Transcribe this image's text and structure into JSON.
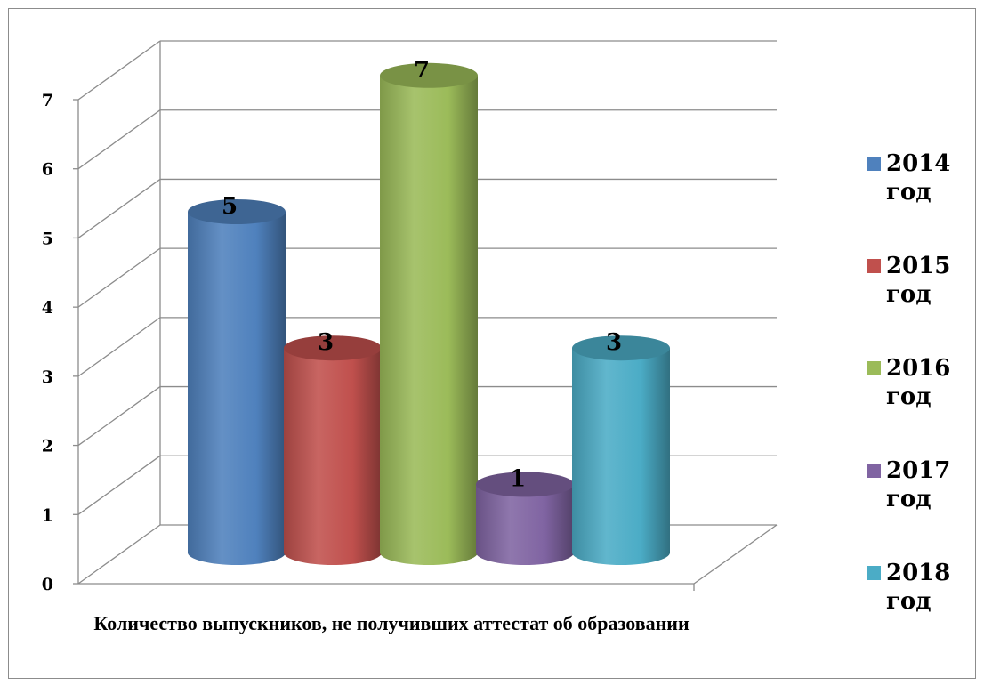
{
  "chart_data": {
    "type": "bar",
    "subtype": "3d-cylinder",
    "categories": [
      "2014 год",
      "2015 год",
      "2016 год",
      "2017 год",
      "2018 год"
    ],
    "values": [
      5,
      3,
      7,
      1,
      3
    ],
    "xlabel": "Количество выпускников, не получивших аттестат об образовании",
    "ylabel": "",
    "ylim": [
      0,
      7
    ],
    "yticks": [
      "0",
      "1",
      "2",
      "3",
      "4",
      "5",
      "6",
      "7"
    ],
    "data_labels": [
      "5",
      "3",
      "7",
      "1",
      "3"
    ],
    "colors": [
      "#4f81bd",
      "#c0504d",
      "#9bbb59",
      "#8064a2",
      "#4bacc6"
    ],
    "legend": {
      "position": "right",
      "entries": [
        {
          "line1": "2014",
          "line2": "год"
        },
        {
          "line1": "2015",
          "line2": "год"
        },
        {
          "line1": "2016",
          "line2": "год"
        },
        {
          "line1": "2017",
          "line2": "год"
        },
        {
          "line1": "2018",
          "line2": "год"
        }
      ]
    },
    "grid": true
  }
}
